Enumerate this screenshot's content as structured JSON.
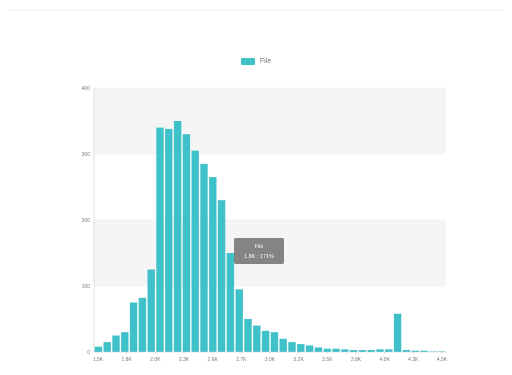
{
  "chart_data": {
    "type": "bar",
    "legend": {
      "label": "File",
      "color": "#3fc1c9",
      "placement": "top-center"
    },
    "colors": {
      "bar": "#3fc1c9",
      "grid_band": "#f5f5f5",
      "axis": "#cccccc"
    },
    "ylim": [
      0,
      400
    ],
    "y_ticks": [
      "0",
      "100",
      "200",
      "300",
      "400"
    ],
    "x_ticks": [
      "1.5K",
      "1.8K",
      "2.0K",
      "2.3K",
      "2.6K",
      "2.7K",
      "3.0K",
      "3.2K",
      "3.5K",
      "3.8K",
      "4.0K",
      "4.3K",
      "4.5K"
    ],
    "values": [
      8,
      15,
      25,
      30,
      75,
      82,
      125,
      340,
      338,
      350,
      330,
      305,
      285,
      265,
      230,
      150,
      95,
      50,
      40,
      32,
      30,
      20,
      15,
      12,
      10,
      7,
      5,
      5,
      4,
      3,
      3,
      3,
      4,
      4,
      58,
      3,
      2,
      2,
      1,
      1
    ],
    "tooltip": {
      "title": "File",
      "body": "1.8K : 171%"
    },
    "grid": true
  }
}
